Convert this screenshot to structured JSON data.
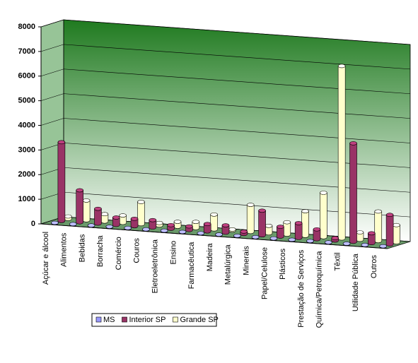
{
  "chart_data": {
    "type": "bar3d",
    "categories": [
      "Açúcar e álcool",
      "Alimentos",
      "Bebidas",
      "Borracha",
      "Comércio",
      "Couros",
      "Eletroeletrônica",
      "Ensino",
      "Farmacêutica",
      "Madeira",
      "Metalúrgica",
      "Minerais",
      "Papel/Celulose",
      "Plásticos",
      "Prestação de Serviços",
      "Química/Petroquímica",
      "Têxtil",
      "Utilidade Pública",
      "Outros"
    ],
    "series": [
      {
        "name": "MS",
        "color": "#9999ff",
        "values": [
          10,
          10,
          10,
          10,
          10,
          10,
          10,
          10,
          10,
          10,
          10,
          10,
          10,
          10,
          10,
          10,
          10,
          10,
          10
        ]
      },
      {
        "name": "Interior SP",
        "color": "#993366",
        "values": [
          3200,
          1300,
          600,
          300,
          300,
          300,
          150,
          150,
          300,
          300,
          100,
          1000,
          400,
          600,
          400,
          100,
          4000,
          400,
          1200
        ]
      },
      {
        "name": "Grande SP",
        "color": "#ffffcc",
        "values": [
          100,
          800,
          300,
          300,
          900,
          100,
          200,
          250,
          600,
          50,
          1100,
          300,
          500,
          1000,
          1800,
          7000,
          300,
          1200,
          700
        ]
      }
    ],
    "ylim": [
      0,
      8000
    ],
    "yticks": [
      0,
      1000,
      2000,
      3000,
      4000,
      5000,
      6000,
      7000,
      8000
    ],
    "grid": true
  }
}
